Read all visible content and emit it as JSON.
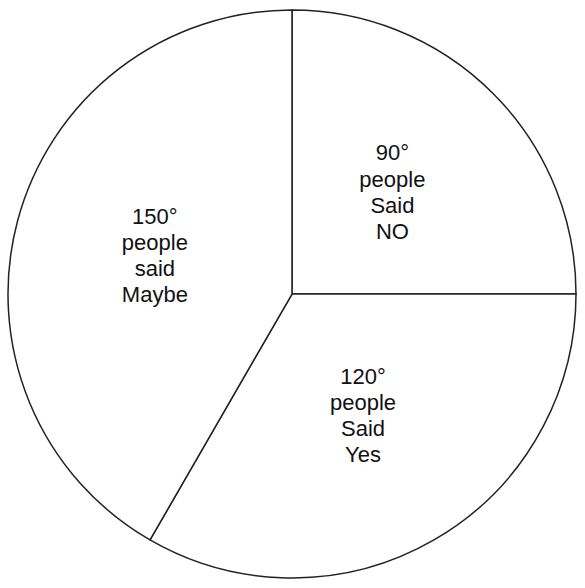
{
  "chart_data": {
    "type": "pie",
    "categories": [
      "people Said NO",
      "people Said Yes",
      "people said Maybe"
    ],
    "values": [
      90,
      120,
      150
    ],
    "value_labels": [
      "90°",
      "120°",
      "150°"
    ],
    "color": "#ffffff",
    "data_labels": true
  }
}
